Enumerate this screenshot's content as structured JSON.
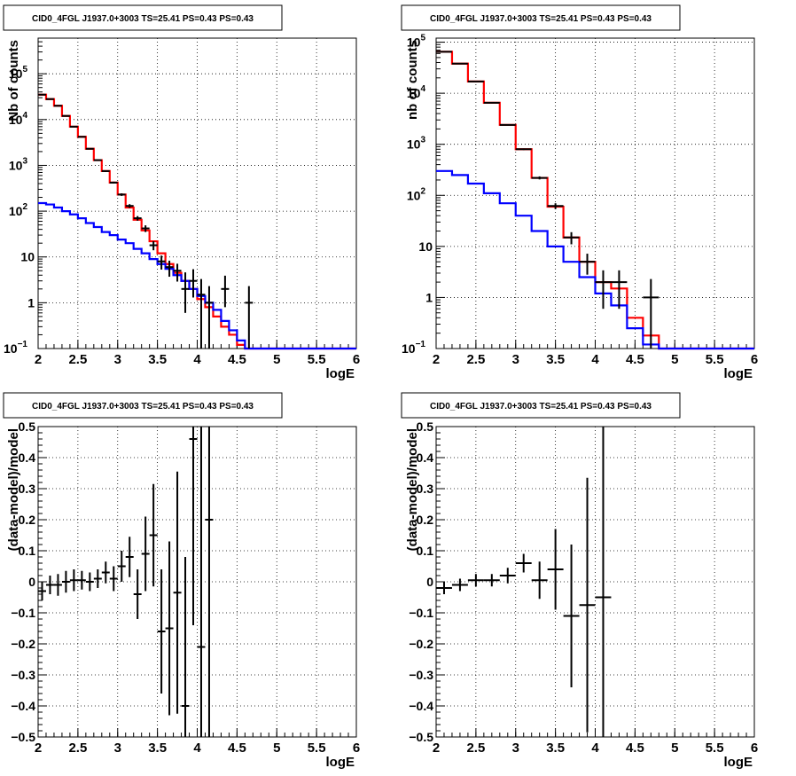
{
  "chart_data": [
    {
      "type": "line",
      "title": "CID0_4FGL J1937.0+3003 TS=25.41 PS=0.43 PS=0.43",
      "xlabel": "logE",
      "ylabel": "Nb of counts",
      "xlim": [
        2,
        6
      ],
      "ylim": [
        0.1,
        600000
      ],
      "yscale": "log",
      "grid": true,
      "x_ticks": [
        "2",
        "2.5",
        "3",
        "3.5",
        "4",
        "4.5",
        "5",
        "5.5",
        "6"
      ],
      "y_ticks": [
        {
          "value": 0.1,
          "label": "10",
          "sup": "−1"
        },
        {
          "value": 1,
          "label": "1",
          "sup": ""
        },
        {
          "value": 10,
          "label": "10",
          "sup": ""
        },
        {
          "value": 100,
          "label": "10",
          "sup": "2"
        },
        {
          "value": 1000,
          "label": "10",
          "sup": "3"
        },
        {
          "value": 10000,
          "label": "10",
          "sup": "4"
        },
        {
          "value": 100000,
          "label": "10",
          "sup": "5"
        }
      ],
      "bin_edges": [
        2,
        2.1,
        2.2,
        2.3,
        2.4,
        2.5,
        2.6,
        2.7,
        2.8,
        2.9,
        3,
        3.1,
        3.2,
        3.3,
        3.4,
        3.5,
        3.6,
        3.7,
        3.8,
        3.9,
        4,
        4.1,
        4.2,
        4.3,
        4.4,
        4.5,
        4.6,
        4.7,
        4.8,
        4.9,
        5,
        5.1,
        5.2,
        5.3,
        5.4,
        5.5,
        5.6,
        5.7,
        5.8,
        5.9,
        6
      ],
      "series": [
        {
          "style": "step",
          "color": "#ff0000",
          "values": [
            35000,
            28000,
            20000,
            12000,
            7000,
            4200,
            2300,
            1300,
            750,
            420,
            230,
            120,
            65,
            38,
            22,
            12,
            7,
            4.5,
            3,
            2,
            1.2,
            0.8,
            0.5,
            0.3,
            0.2,
            0.12,
            0.1,
            0.1,
            0.1,
            0.1,
            0.1,
            0.1,
            0.1,
            0.1,
            0.1,
            0.1,
            0.1,
            0.1,
            0.1,
            0.1
          ]
        },
        {
          "style": "step",
          "color": "#0000ff",
          "values": [
            150,
            140,
            120,
            100,
            85,
            70,
            55,
            45,
            35,
            30,
            24,
            20,
            15,
            12,
            9,
            7,
            5.5,
            4,
            3,
            2,
            1.4,
            1,
            0.7,
            0.4,
            0.25,
            0.15,
            0.1,
            0.1,
            0.1,
            0.1,
            0.1,
            0.1,
            0.1,
            0.1,
            0.1,
            0.1,
            0.1,
            0.1,
            0.1,
            0.1
          ]
        },
        {
          "style": "points",
          "color": "#000000",
          "x": [
            2.05,
            2.15,
            2.25,
            2.35,
            2.45,
            2.55,
            2.65,
            2.75,
            2.85,
            2.95,
            3.05,
            3.15,
            3.25,
            3.35,
            3.45,
            3.55,
            3.65,
            3.75,
            3.85,
            3.95,
            4.05,
            4.15,
            4.35,
            4.65
          ],
          "y": [
            35000,
            28000,
            20000,
            12000,
            7000,
            4200,
            2300,
            1300,
            750,
            420,
            230,
            130,
            70,
            42,
            18,
            8,
            6,
            5,
            2,
            3,
            1.5,
            1,
            2,
            1
          ],
          "ylo": [
            34800,
            27800,
            19850,
            11890,
            6920,
            4130,
            2250,
            1260,
            720,
            400,
            215,
            118,
            62,
            35,
            14,
            5.3,
            3.7,
            2.9,
            0.6,
            1.3,
            0.1,
            0.1,
            0.8,
            0.1
          ],
          "yhi": [
            35200,
            28200,
            20150,
            12110,
            7080,
            4270,
            2350,
            1340,
            780,
            440,
            245,
            142,
            78,
            49,
            22,
            10.7,
            8.3,
            7.1,
            4.6,
            5.4,
            3.3,
            2.3,
            3.9,
            2.3
          ]
        }
      ]
    },
    {
      "type": "line",
      "title": "CID0_4FGL J1937.0+3003 TS=25.41 PS=0.43 PS=0.43",
      "xlabel": "logE",
      "ylabel": "nb of counts",
      "xlim": [
        2,
        6
      ],
      "ylim": [
        0.1,
        120000
      ],
      "yscale": "log",
      "grid": true,
      "x_ticks": [
        "2",
        "2.5",
        "3",
        "3.5",
        "4",
        "4.5",
        "5",
        "5.5",
        "6"
      ],
      "y_ticks": [
        {
          "value": 0.1,
          "label": "10",
          "sup": "−1"
        },
        {
          "value": 1,
          "label": "1",
          "sup": ""
        },
        {
          "value": 10,
          "label": "10",
          "sup": ""
        },
        {
          "value": 100,
          "label": "10",
          "sup": "2"
        },
        {
          "value": 1000,
          "label": "10",
          "sup": "3"
        },
        {
          "value": 10000,
          "label": "10",
          "sup": "4"
        },
        {
          "value": 100000,
          "label": "10",
          "sup": "5"
        }
      ],
      "bin_edges": [
        2,
        2.2,
        2.4,
        2.6,
        2.8,
        3,
        3.2,
        3.4,
        3.6,
        3.8,
        4,
        4.2,
        4.4,
        4.6,
        4.8,
        5,
        5.2,
        5.4,
        5.6,
        5.8,
        6
      ],
      "series": [
        {
          "style": "step",
          "color": "#ff0000",
          "values": [
            65000,
            38000,
            17000,
            6500,
            2400,
            800,
            220,
            60,
            15,
            5,
            2,
            1.5,
            0.4,
            0.18,
            0.1,
            0.1,
            0.1,
            0.1,
            0.1,
            0.1
          ]
        },
        {
          "style": "step",
          "color": "#0000ff",
          "values": [
            300,
            250,
            170,
            110,
            70,
            40,
            20,
            10,
            5,
            2.5,
            1.2,
            0.7,
            0.25,
            0.12,
            0.1,
            0.1,
            0.1,
            0.1,
            0.1,
            0.1
          ]
        },
        {
          "style": "points",
          "color": "#000000",
          "x": [
            2.1,
            2.3,
            2.5,
            2.7,
            2.9,
            3.1,
            3.3,
            3.5,
            3.7,
            3.9,
            4.1,
            4.3,
            4.7
          ],
          "y": [
            65000,
            38000,
            17000,
            6500,
            2400,
            800,
            220,
            62,
            15,
            5,
            2,
            2,
            1
          ],
          "ylo": [
            64700,
            37800,
            16870,
            6420,
            2350,
            772,
            205,
            54,
            11,
            2.8,
            0.6,
            0.6,
            0.1
          ],
          "yhi": [
            65300,
            38200,
            17130,
            6580,
            2450,
            828,
            235,
            70,
            19,
            7.2,
            3.4,
            3.4,
            2.3
          ]
        }
      ]
    },
    {
      "type": "scatter",
      "title": "CID0_4FGL J1937.0+3003 TS=25.41 PS=0.43 PS=0.43",
      "xlabel": "logE",
      "ylabel": "(data-model)/model",
      "xlim": [
        2,
        6
      ],
      "ylim": [
        -0.5,
        0.5
      ],
      "grid": true,
      "x_ticks": [
        "2",
        "2.5",
        "3",
        "3.5",
        "4",
        "4.5",
        "5",
        "5.5",
        "6"
      ],
      "y_ticks": [
        "−0.5",
        "−0.4",
        "−0.3",
        "−0.2",
        "−0.1",
        "0",
        "0.1",
        "0.2",
        "0.3",
        "0.4",
        "0.5"
      ],
      "bin_width": 0.1,
      "series": [
        {
          "style": "errorbars",
          "color": "#000000",
          "x": [
            2.05,
            2.15,
            2.25,
            2.35,
            2.45,
            2.55,
            2.65,
            2.75,
            2.85,
            2.95,
            3.05,
            3.15,
            3.25,
            3.35,
            3.45,
            3.55,
            3.65,
            3.75,
            3.85,
            3.95,
            4.05,
            4.15
          ],
          "y": [
            -0.03,
            -0.01,
            -0.01,
            0.0,
            0.005,
            0.005,
            0.0,
            0.01,
            0.03,
            0.01,
            0.05,
            0.08,
            -0.04,
            0.09,
            0.15,
            -0.16,
            -0.15,
            -0.035,
            -0.4,
            0.46,
            -0.21,
            0.2
          ],
          "yerr": [
            0.03,
            0.03,
            0.035,
            0.035,
            0.035,
            0.03,
            0.03,
            0.03,
            0.035,
            0.04,
            0.05,
            0.065,
            0.08,
            0.12,
            0.165,
            0.2,
            0.28,
            0.39,
            0.48,
            0.6,
            0.8,
            0.9
          ]
        }
      ]
    },
    {
      "type": "scatter",
      "title": "CID0_4FGL J1937.0+3003 TS=25.41 PS=0.43 PS=0.43",
      "xlabel": "logE",
      "ylabel": "(data-model)/model",
      "xlim": [
        2,
        6
      ],
      "ylim": [
        -0.5,
        0.5
      ],
      "grid": true,
      "x_ticks": [
        "2",
        "2.5",
        "3",
        "3.5",
        "4",
        "4.5",
        "5",
        "5.5",
        "6"
      ],
      "y_ticks": [
        "−0.5",
        "−0.4",
        "−0.3",
        "−0.2",
        "−0.1",
        "0",
        "0.1",
        "0.2",
        "0.3",
        "0.4",
        "0.5"
      ],
      "bin_width": 0.2,
      "series": [
        {
          "style": "errorbars",
          "color": "#000000",
          "x": [
            2.1,
            2.3,
            2.5,
            2.7,
            2.9,
            3.1,
            3.3,
            3.5,
            3.7,
            3.9,
            4.1
          ],
          "y": [
            -0.02,
            -0.01,
            0.005,
            0.005,
            0.02,
            0.06,
            0.005,
            0.04,
            -0.11,
            -0.075,
            -0.05
          ],
          "yerr": [
            0.02,
            0.02,
            0.02,
            0.02,
            0.025,
            0.03,
            0.06,
            0.13,
            0.23,
            0.41,
            0.6
          ]
        }
      ]
    }
  ]
}
